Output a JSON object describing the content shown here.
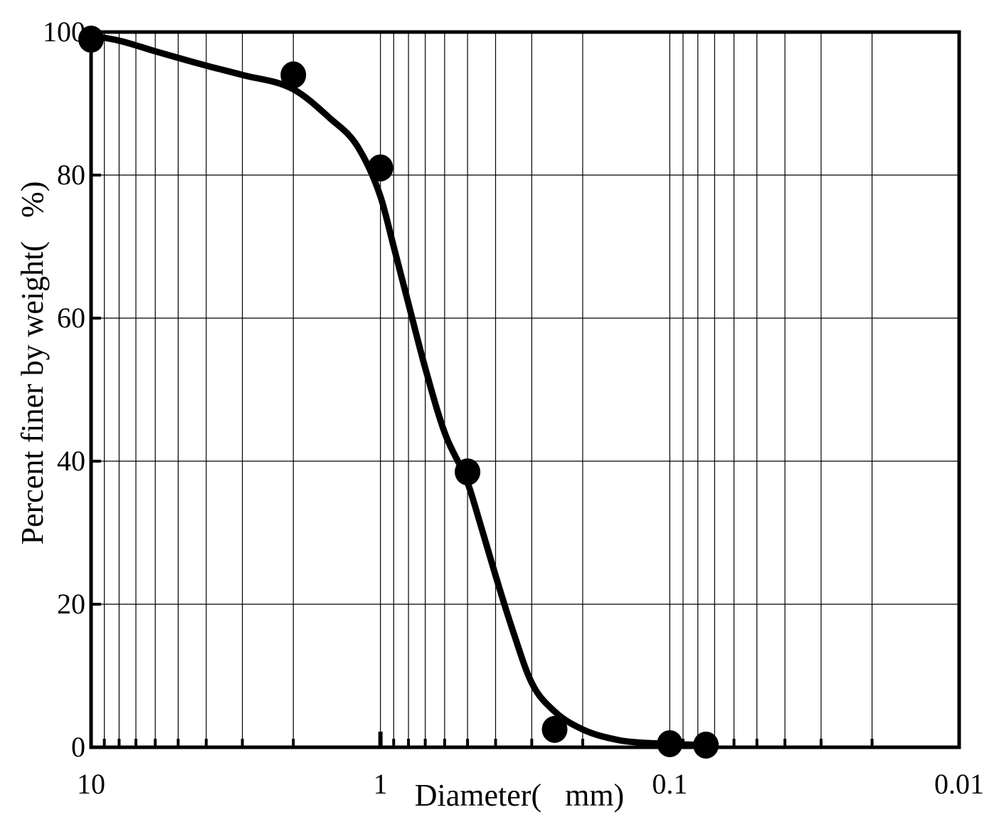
{
  "chart_data": {
    "type": "scatter",
    "title": "",
    "xlabel": "Diameter(   mm)",
    "ylabel": "Percent finer by weight(   %)",
    "x_scale": "log",
    "x_reversed": true,
    "xlim": [
      10,
      0.01
    ],
    "ylim": [
      0,
      100
    ],
    "xticks": [
      {
        "value": 10,
        "label": "10"
      },
      {
        "value": 1,
        "label": "1"
      },
      {
        "value": 0.1,
        "label": "0.1"
      },
      {
        "value": 0.01,
        "label": "0.01"
      }
    ],
    "yticks": [
      {
        "value": 0,
        "label": "0"
      },
      {
        "value": 20,
        "label": "20"
      },
      {
        "value": 40,
        "label": "40"
      },
      {
        "value": 60,
        "label": "60"
      },
      {
        "value": 80,
        "label": "80"
      },
      {
        "value": 100,
        "label": "100"
      }
    ],
    "grid": true,
    "series": [
      {
        "kind": "points",
        "x": [
          10,
          2,
          1,
          0.5,
          0.25,
          0.1,
          0.075
        ],
        "y": [
          99,
          94,
          81,
          38.5,
          2.5,
          0.5,
          0.3
        ]
      },
      {
        "kind": "curve",
        "x": [
          10,
          8,
          6,
          4,
          3,
          2,
          1.5,
          1.2,
          1.0,
          0.9,
          0.8,
          0.7,
          0.6,
          0.5,
          0.45,
          0.4,
          0.35,
          0.3,
          0.25,
          0.2,
          0.15,
          0.12,
          0.1,
          0.09,
          0.075
        ],
        "y": [
          99.5,
          98.8,
          97.3,
          95.3,
          94,
          92,
          88,
          84,
          77,
          70,
          62,
          53,
          44,
          37,
          31,
          24,
          16.5,
          9,
          5,
          2.5,
          1,
          0.6,
          0.5,
          0.4,
          0.3
        ]
      }
    ],
    "colors": {
      "line": "#000000",
      "points": "#000000",
      "grid": "#000000",
      "background": "#ffffff"
    }
  }
}
